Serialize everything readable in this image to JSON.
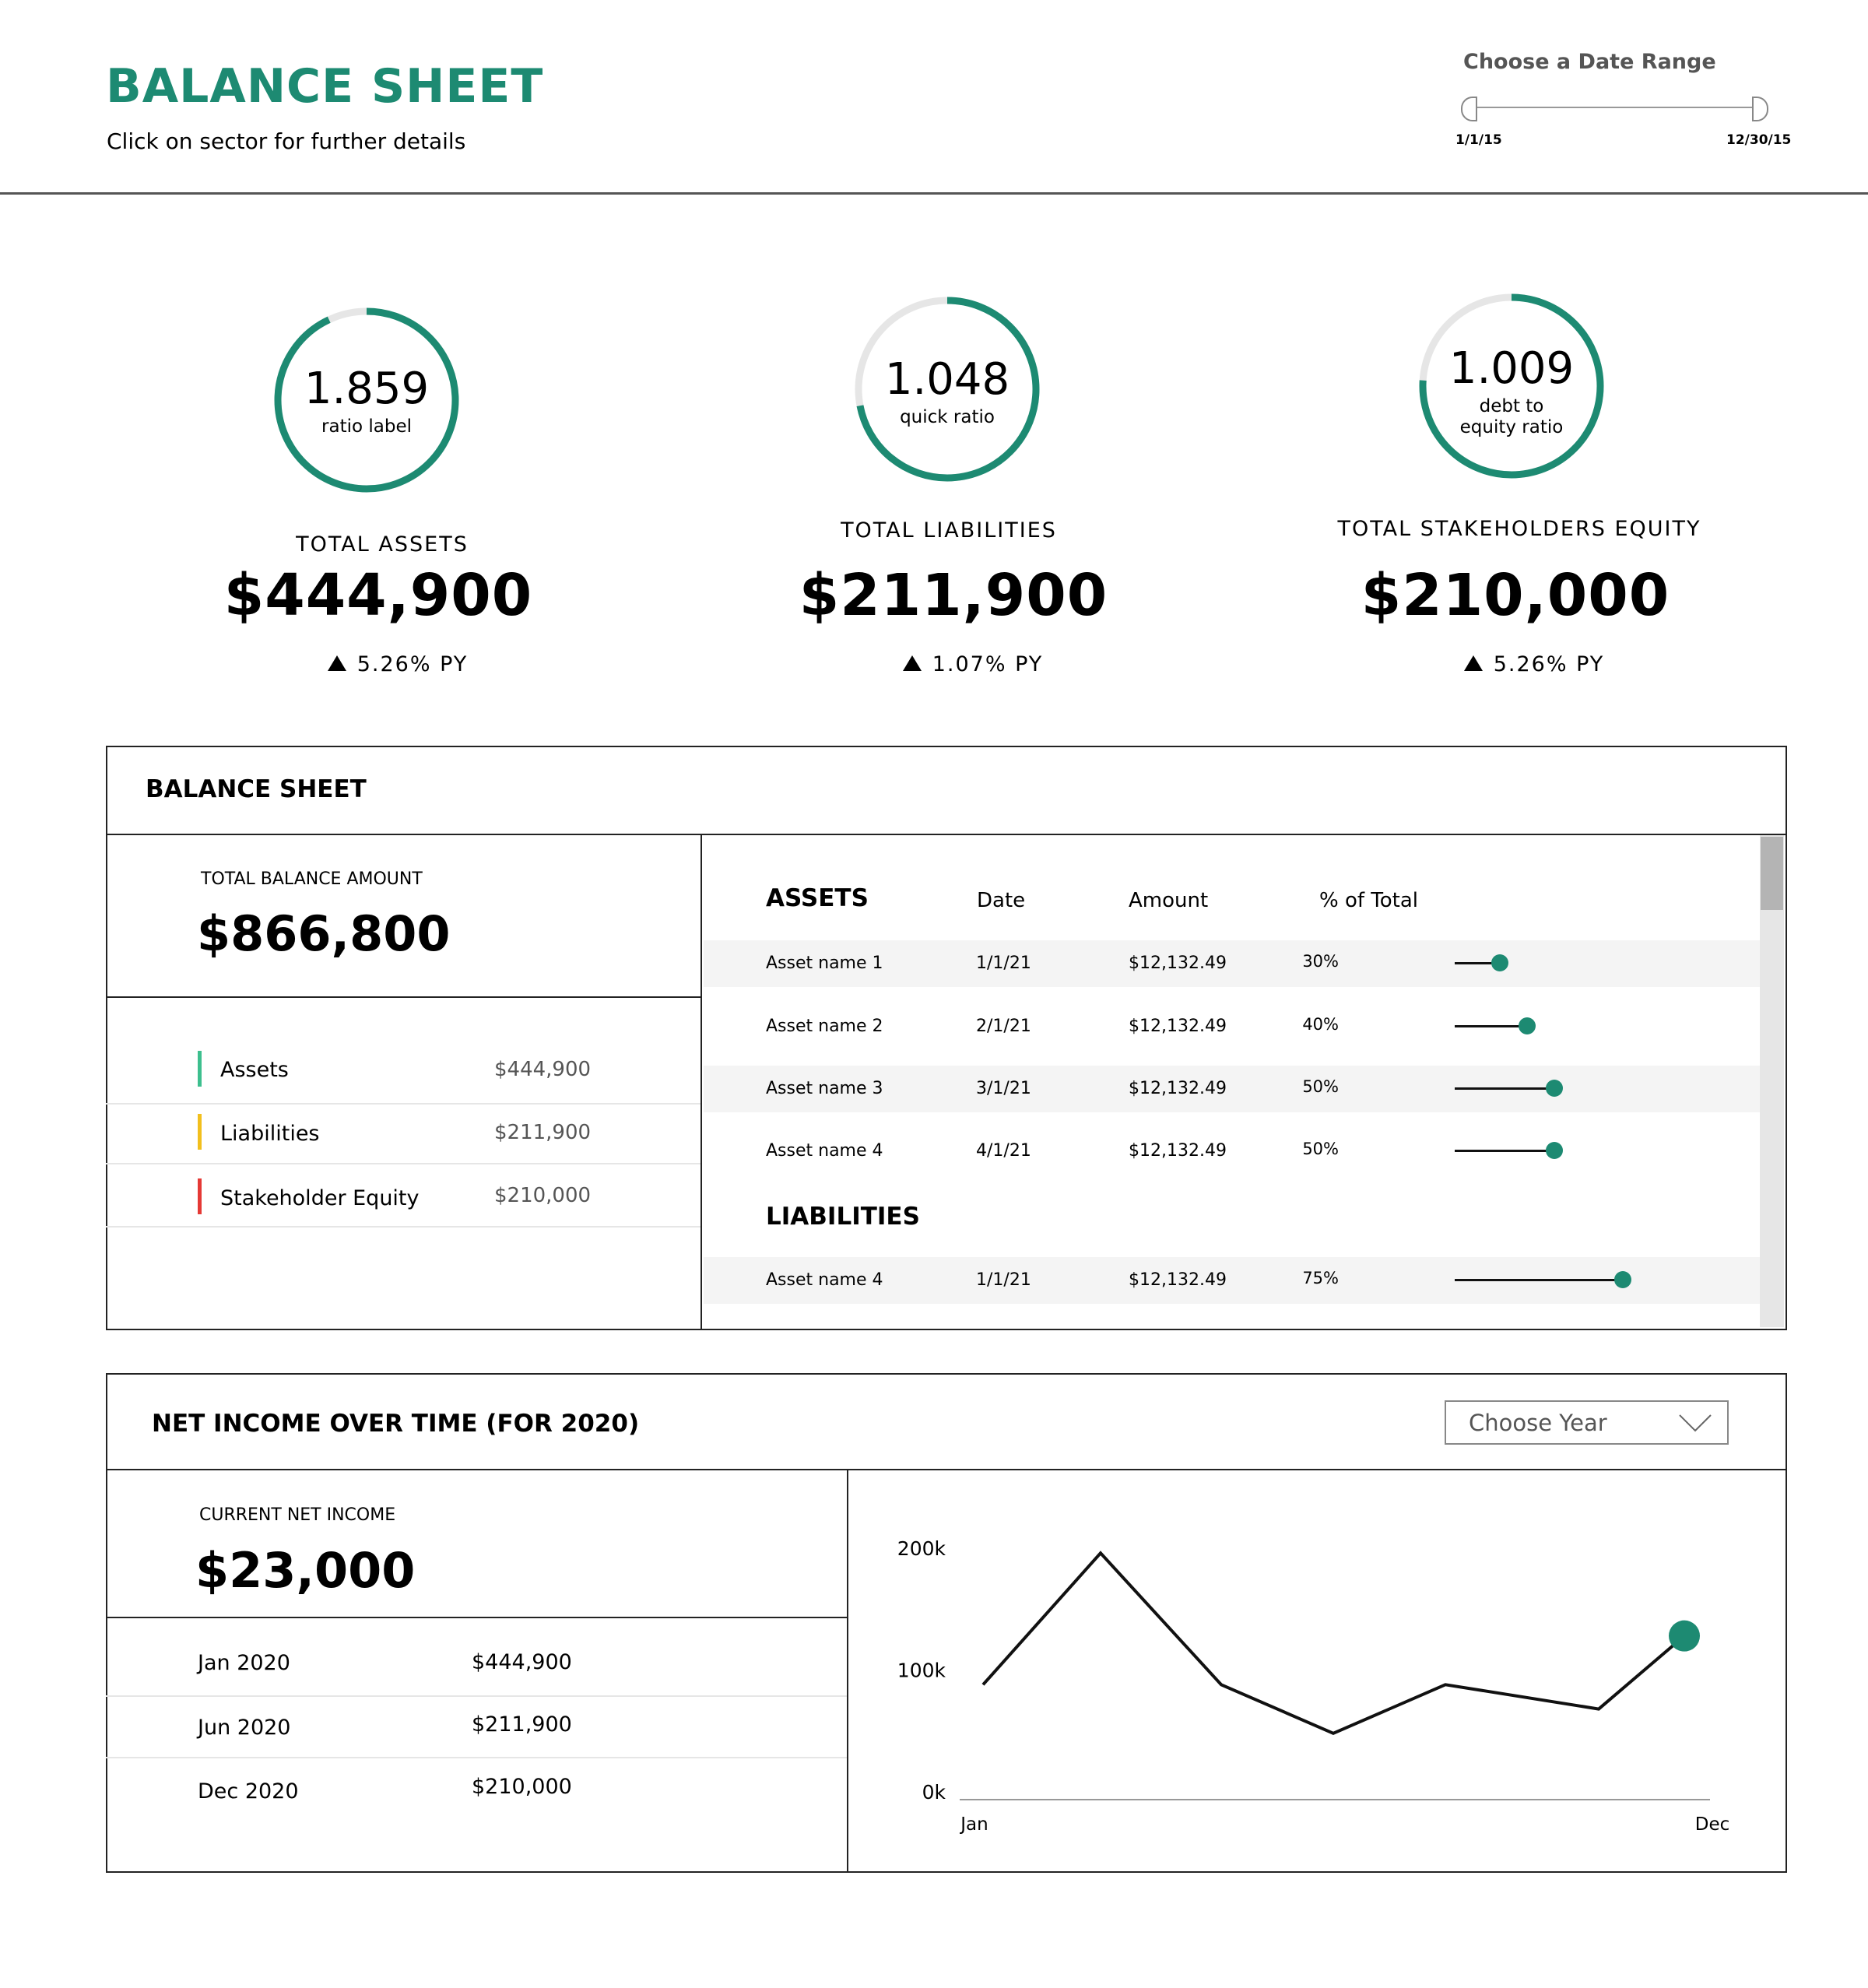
{
  "header": {
    "title": "BALANCE SHEET",
    "subtitle": "Click on sector for further details",
    "date_range": {
      "label": "Choose a Date Range",
      "start": "1/1/15",
      "end": "12/30/15"
    }
  },
  "kpis": [
    {
      "ratio_value": "1.859",
      "ratio_label": "ratio label",
      "ratio_fraction": 0.93,
      "title": "TOTAL ASSETS",
      "amount": "$444,900",
      "change": "5.26% PY"
    },
    {
      "ratio_value": "1.048",
      "ratio_label": "quick ratio",
      "ratio_fraction": 0.72,
      "title": "TOTAL LIABILITIES",
      "amount": "$211,900",
      "change": "1.07% PY"
    },
    {
      "ratio_value": "1.009",
      "ratio_label_1": "debt to",
      "ratio_label_2": "equity ratio",
      "ratio_fraction": 0.76,
      "title": "TOTAL STAKEHOLDERS EQUITY",
      "amount": "$210,000",
      "change": "5.26% PY"
    }
  ],
  "balance_sheet": {
    "title": "BALANCE SHEET",
    "total_label": "TOTAL BALANCE AMOUNT",
    "total_value": "$866,800",
    "legend": [
      {
        "label": "Assets",
        "value": "$444,900",
        "color": "#3dbf8e"
      },
      {
        "label": "Liabilities",
        "value": "$211,900",
        "color": "#f2bf1d"
      },
      {
        "label": "Stakeholder Equity",
        "value": "$210,000",
        "color": "#e53935"
      }
    ],
    "table": {
      "assets_heading": "ASSETS",
      "col_date": "Date",
      "col_amount": "Amount",
      "col_pct": "% of Total",
      "assets": [
        {
          "name": "Asset name 1",
          "date": "1/1/21",
          "amount": "$12,132.49",
          "pct": "30%",
          "pct_value": 30
        },
        {
          "name": "Asset name 2",
          "date": "2/1/21",
          "amount": "$12,132.49",
          "pct": "40%",
          "pct_value": 40
        },
        {
          "name": "Asset name 3",
          "date": "3/1/21",
          "amount": "$12,132.49",
          "pct": "50%",
          "pct_value": 50
        },
        {
          "name": "Asset name 4",
          "date": "4/1/21",
          "amount": "$12,132.49",
          "pct": "50%",
          "pct_value": 50
        }
      ],
      "liabilities_heading": "LIABILITIES",
      "liabilities": [
        {
          "name": "Asset name 4",
          "date": "1/1/21",
          "amount": "$12,132.49",
          "pct": "75%",
          "pct_value": 75
        }
      ]
    }
  },
  "net_income": {
    "title": "NET INCOME OVER TIME (FOR 2020)",
    "year_select": "Choose Year",
    "current_label": "CURRENT NET INCOME",
    "current_value": "$23,000",
    "rows": [
      {
        "period": "Jan 2020",
        "value": "$444,900"
      },
      {
        "period": "Jun 2020",
        "value": "$211,900"
      },
      {
        "period": "Dec 2020",
        "value": "$210,000"
      }
    ]
  },
  "chart_data": {
    "type": "line",
    "y_ticks": [
      "200k",
      "100k",
      "0k"
    ],
    "x_labels": [
      "Jan",
      "Dec"
    ],
    "ylim": [
      0,
      200000
    ],
    "series": [
      {
        "values": [
          88000,
          196000,
          88000,
          48000,
          88000,
          68000,
          128000
        ]
      }
    ],
    "highlight_last_point": true,
    "accent_color": "#1d8a72"
  }
}
